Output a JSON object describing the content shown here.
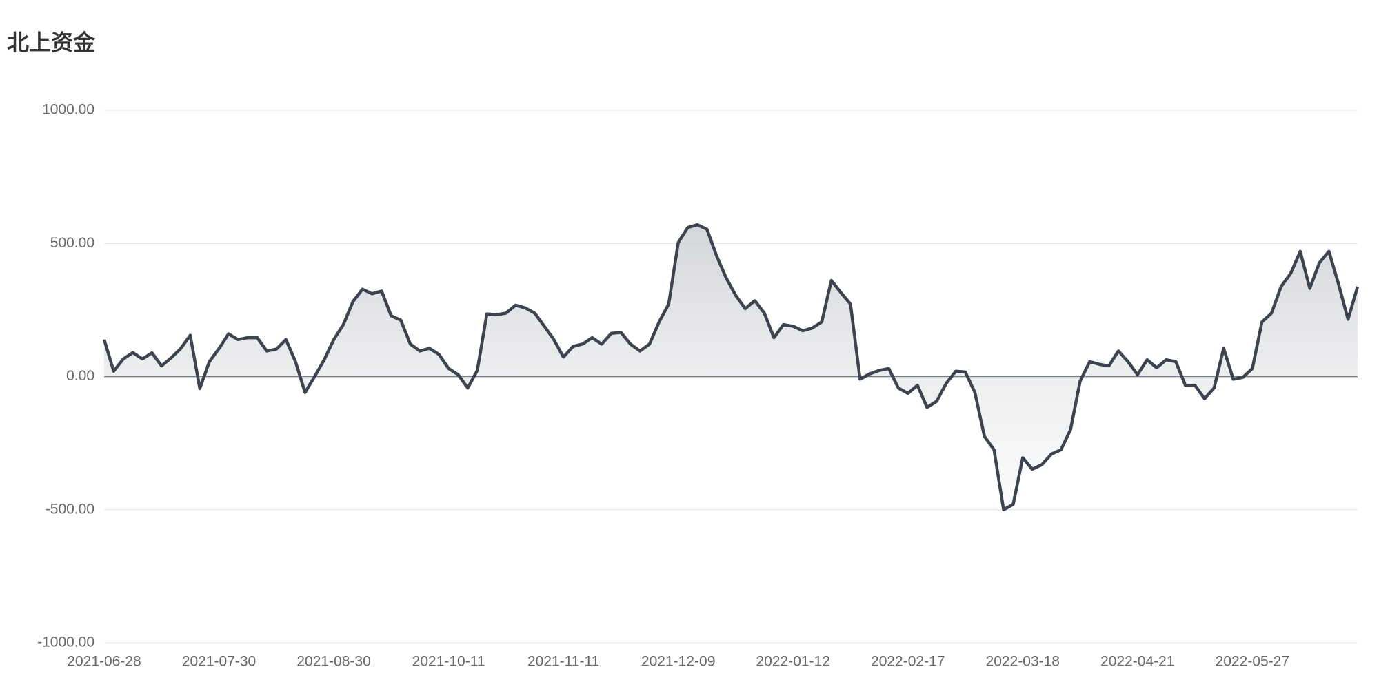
{
  "chart_data": {
    "type": "line",
    "title": "北上资金",
    "categories": [
      "2021-06-28",
      null,
      null,
      null,
      null,
      null,
      null,
      null,
      null,
      null,
      null,
      null,
      "2021-07-30",
      null,
      null,
      null,
      null,
      null,
      null,
      null,
      null,
      null,
      null,
      null,
      "2021-08-30",
      null,
      null,
      null,
      null,
      null,
      null,
      null,
      null,
      null,
      null,
      null,
      "2021-10-11",
      null,
      null,
      null,
      null,
      null,
      null,
      null,
      null,
      null,
      null,
      null,
      "2021-11-11",
      null,
      null,
      null,
      null,
      null,
      null,
      null,
      null,
      null,
      null,
      null,
      "2021-12-09",
      null,
      null,
      null,
      null,
      null,
      null,
      null,
      null,
      null,
      null,
      null,
      "2022-01-12",
      null,
      null,
      null,
      null,
      null,
      null,
      null,
      null,
      null,
      null,
      null,
      "2022-02-17",
      null,
      null,
      null,
      null,
      null,
      null,
      null,
      null,
      null,
      null,
      null,
      "2022-03-18",
      null,
      null,
      null,
      null,
      null,
      null,
      null,
      null,
      null,
      null,
      null,
      "2022-04-21",
      null,
      null,
      null,
      null,
      null,
      null,
      null,
      null,
      null,
      null,
      null,
      "2022-05-27",
      null,
      null,
      null,
      null,
      null,
      null,
      null,
      null,
      null,
      null,
      null
    ],
    "values": [
      139,
      20,
      66,
      90,
      66,
      89,
      40,
      70,
      105,
      155,
      -45,
      56,
      105,
      160,
      139,
      146,
      146,
      96,
      103,
      139,
      56,
      -60,
      0,
      63,
      139,
      195,
      281,
      328,
      311,
      321,
      228,
      212,
      122,
      96,
      106,
      83,
      30,
      7,
      -43,
      23,
      235,
      232,
      238,
      268,
      258,
      238,
      189,
      139,
      73,
      113,
      122,
      146,
      122,
      162,
      166,
      122,
      96,
      122,
      205,
      272,
      503,
      560,
      570,
      553,
      454,
      371,
      305,
      255,
      285,
      238,
      146,
      195,
      189,
      172,
      182,
      205,
      361,
      315,
      272,
      -10,
      10,
      23,
      30,
      -43,
      -63,
      -33,
      -116,
      -93,
      -26,
      20,
      17,
      -60,
      -225,
      -275,
      -500,
      -480,
      -305,
      -348,
      -331,
      -291,
      -275,
      -199,
      -17,
      56,
      46,
      40,
      96,
      56,
      7,
      63,
      33,
      63,
      56,
      -33,
      -33,
      -83,
      -43,
      106,
      -10,
      -3,
      30,
      205,
      238,
      338,
      387,
      470,
      331,
      427,
      470,
      348,
      215,
      338
    ],
    "color": "#3d4450",
    "ylim": [
      -1000,
      1000
    ],
    "yticks": [
      {
        "value": -1000,
        "label": "-1000.00"
      },
      {
        "value": -500,
        "label": "-500.00"
      },
      {
        "value": 0,
        "label": "0.00"
      },
      {
        "value": 500,
        "label": "500.00"
      },
      {
        "value": 1000,
        "label": "1000.00"
      }
    ],
    "grid": true
  }
}
